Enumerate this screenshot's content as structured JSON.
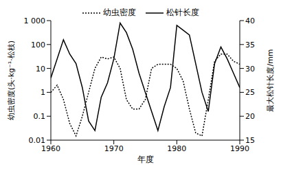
{
  "chart_data": {
    "type": "line",
    "x_label": "年度",
    "y_label": "幼虫密度(头·kg⁻¹·松枝)",
    "y2_label": "最大松针长度/mm",
    "x": [
      1960,
      1961,
      1962,
      1963,
      1964,
      1965,
      1966,
      1967,
      1968,
      1969,
      1970,
      1971,
      1972,
      1973,
      1974,
      1975,
      1976,
      1977,
      1978,
      1979,
      1980,
      1981,
      1982,
      1983,
      1984,
      1985,
      1986,
      1987,
      1988,
      1989,
      1990
    ],
    "series": [
      {
        "name": "幼虫密度",
        "color": "#000000",
        "line_style": "dotted",
        "values": [
          1,
          2,
          0.5,
          0.05,
          0.015,
          0.1,
          1,
          10,
          30,
          25,
          30,
          10,
          0.5,
          0.2,
          0.2,
          0.5,
          10,
          15,
          15,
          15,
          10,
          3,
          0.2,
          0.02,
          0.015,
          0.5,
          20,
          40,
          40,
          20,
          15
        ]
      },
      {
        "name": "松针长度",
        "color": "#000000",
        "line_style": "solid",
        "axis": "y2",
        "values": [
          28,
          32,
          36,
          33,
          31,
          26,
          19,
          17,
          24,
          27,
          32,
          39.5,
          37.5,
          34,
          29,
          25,
          21,
          17,
          22,
          26,
          39,
          38,
          37,
          31,
          25,
          21,
          31,
          34.5,
          32,
          29,
          26
        ]
      }
    ],
    "xlim": [
      1960,
      1990
    ],
    "xticks": [
      1960,
      1970,
      1980,
      1990
    ],
    "ylim": [
      0.01,
      1000
    ],
    "yticks": [
      0.01,
      0.1,
      1,
      10,
      100,
      {
        "value": 1000,
        "label": "1 000"
      }
    ],
    "log": "y",
    "y2lim": [
      15,
      40
    ],
    "y2ticks": [
      15,
      20,
      25,
      30,
      35,
      40
    ],
    "legend": "top",
    "grid": false
  }
}
